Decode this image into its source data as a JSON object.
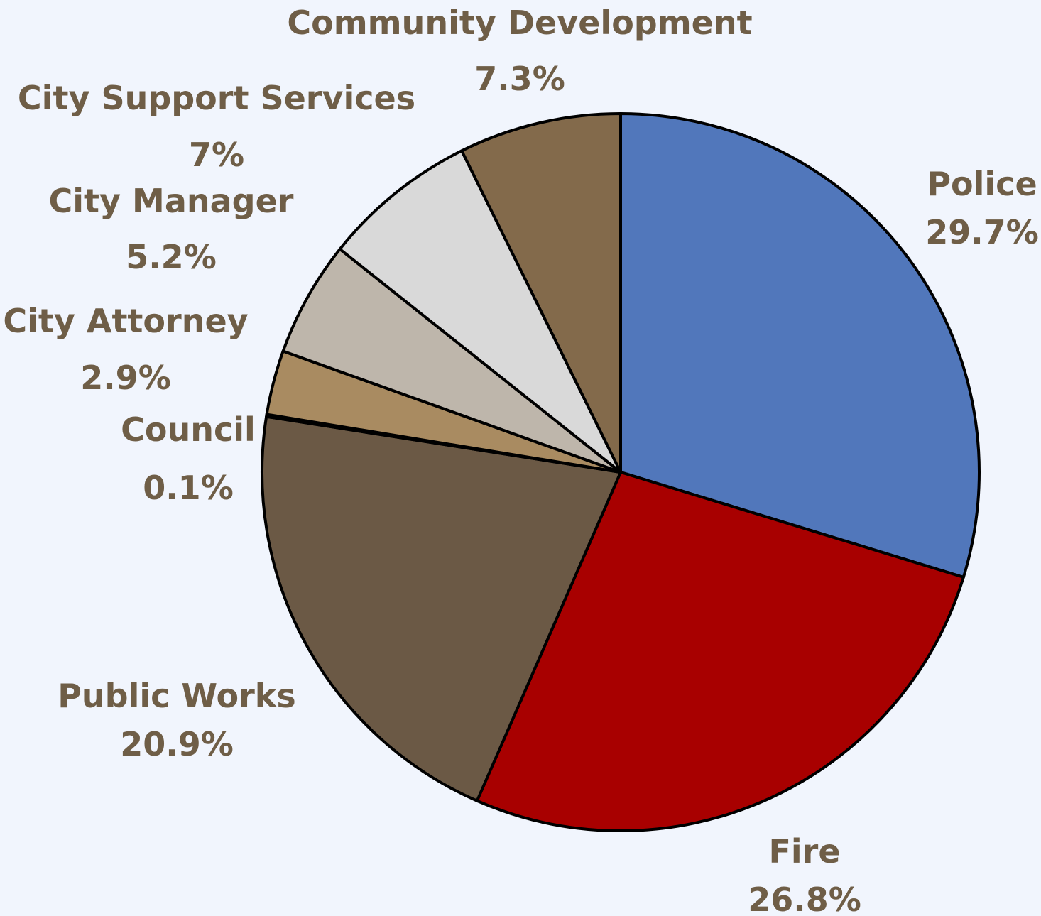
{
  "chart_data": {
    "type": "pie",
    "title": "",
    "label_color": "#6f5e47",
    "background": "#f1f5fd",
    "slices": [
      {
        "name": "Police",
        "value": 29.7,
        "label": "29.7%",
        "color": "#5177bb"
      },
      {
        "name": "Fire",
        "value": 26.8,
        "label": "26.8%",
        "color": "#a80000"
      },
      {
        "name": "Public Works",
        "value": 20.9,
        "label": "20.9%",
        "color": "#6b5945"
      },
      {
        "name": "Council",
        "value": 0.1,
        "label": "0.1%",
        "color": "#3f6fa7"
      },
      {
        "name": "City Attorney",
        "value": 2.9,
        "label": "2.9%",
        "color": "#a98b61"
      },
      {
        "name": "City Manager",
        "value": 5.2,
        "label": "5.2%",
        "color": "#beb6ab"
      },
      {
        "name": "City Support Services",
        "value": 7.0,
        "label": "7%",
        "color": "#d9d9d9"
      },
      {
        "name": "Community Development",
        "value": 7.3,
        "label": "7.3%",
        "color": "#836a4b"
      }
    ]
  }
}
